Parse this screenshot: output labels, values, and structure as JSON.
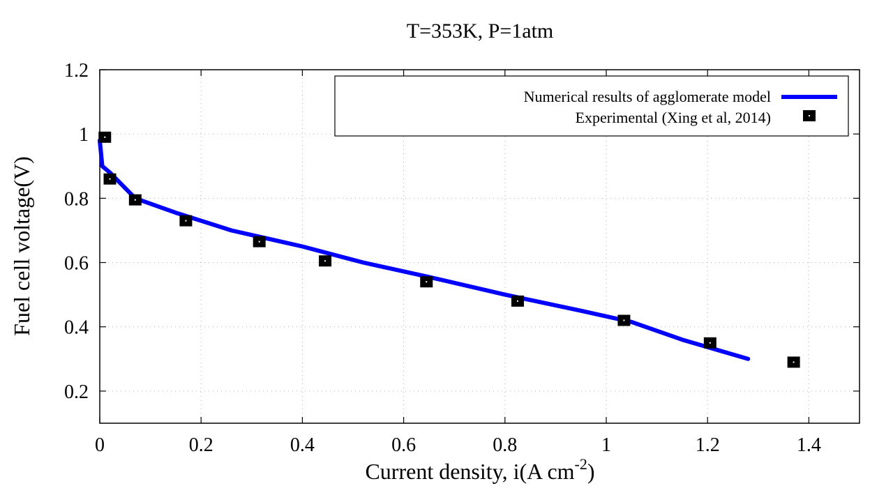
{
  "chart_data": {
    "type": "line",
    "title": "T=353K, P=1atm",
    "xlabel": "Current density, i(A cm",
    "xlabel_sup": "-2",
    "xlabel_suffix": ")",
    "ylabel": "Fuel cell voltage(V)",
    "xlim": [
      0,
      1.5
    ],
    "ylim": [
      0.1,
      1.2
    ],
    "xticks": [
      {
        "value": 0,
        "label": "0"
      },
      {
        "value": 0.2,
        "label": "0.2"
      },
      {
        "value": 0.4,
        "label": "0.4"
      },
      {
        "value": 0.6,
        "label": "0.6"
      },
      {
        "value": 0.8,
        "label": "0.8"
      },
      {
        "value": 1.0,
        "label": "1"
      },
      {
        "value": 1.2,
        "label": "1.2"
      },
      {
        "value": 1.4,
        "label": "1.4"
      }
    ],
    "yticks": [
      {
        "value": 0.2,
        "label": "0.2"
      },
      {
        "value": 0.4,
        "label": "0.4"
      },
      {
        "value": 0.6,
        "label": "0.6"
      },
      {
        "value": 0.8,
        "label": "0.8"
      },
      {
        "value": 1.0,
        "label": "1"
      },
      {
        "value": 1.2,
        "label": "1.2"
      }
    ],
    "grid": true,
    "legend_position": "top-right",
    "series": [
      {
        "name": "Numerical results of agglomerate model",
        "style": "line",
        "color": "#0000ff",
        "x": [
          0.0,
          0.005,
          0.02,
          0.07,
          0.15,
          0.26,
          0.4,
          0.52,
          0.65,
          0.8,
          0.95,
          1.05,
          1.15,
          1.28
        ],
        "y": [
          0.98,
          0.9,
          0.88,
          0.8,
          0.755,
          0.7,
          0.65,
          0.6,
          0.555,
          0.5,
          0.45,
          0.415,
          0.36,
          0.3
        ]
      },
      {
        "name": "Experimental (Xing et al, 2014)",
        "style": "marker",
        "color": "#000000",
        "x": [
          0.01,
          0.02,
          0.07,
          0.17,
          0.315,
          0.445,
          0.645,
          0.825,
          1.035,
          1.205,
          1.37
        ],
        "y": [
          0.99,
          0.86,
          0.795,
          0.73,
          0.665,
          0.605,
          0.54,
          0.48,
          0.42,
          0.35,
          0.29
        ]
      }
    ]
  }
}
